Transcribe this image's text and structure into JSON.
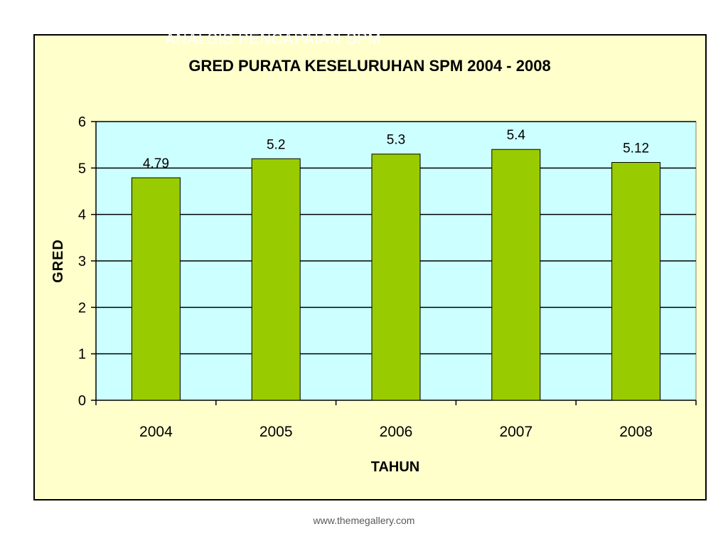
{
  "slide": {
    "title": "ANALSIS PENCAPAIAN SPM",
    "footer": "www.themegallery.com"
  },
  "chart_data": {
    "type": "bar",
    "title": "GRED PURATA KESELURUHAN SPM 2004 - 2008",
    "xlabel": "TAHUN",
    "ylabel": "GRED",
    "categories": [
      "2004",
      "2005",
      "2006",
      "2007",
      "2008"
    ],
    "values": [
      4.79,
      5.2,
      5.3,
      5.4,
      5.12
    ],
    "data_labels": [
      "4.79",
      "5.2",
      "5.3",
      "5.4",
      "5.12"
    ],
    "ylim": [
      0,
      6
    ],
    "yticks": [
      0,
      1,
      2,
      3,
      4,
      5,
      6
    ],
    "grid": true,
    "legend": "none",
    "colors": {
      "bar": "#99cc00",
      "plot_background": "#ccffff",
      "chart_background": "#ffffcc"
    }
  }
}
